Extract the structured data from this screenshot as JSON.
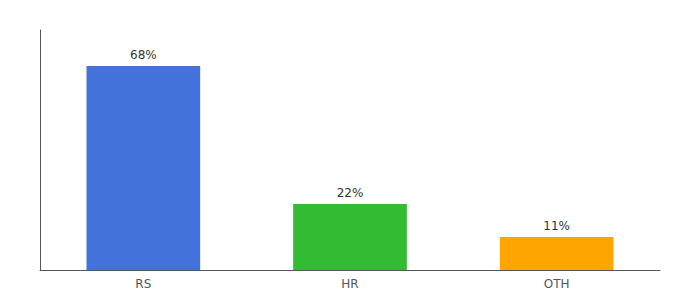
{
  "chart_data": {
    "type": "bar",
    "categories": [
      "RS",
      "HR",
      "OTH"
    ],
    "values": [
      68,
      22,
      11
    ],
    "value_labels": [
      "68%",
      "22%",
      "11%"
    ],
    "colors": [
      "#4472DB",
      "#33BB33",
      "#FFA500"
    ],
    "ylim": [
      0,
      80
    ],
    "grid": false,
    "data_labels": true,
    "tick_labels": "x"
  }
}
